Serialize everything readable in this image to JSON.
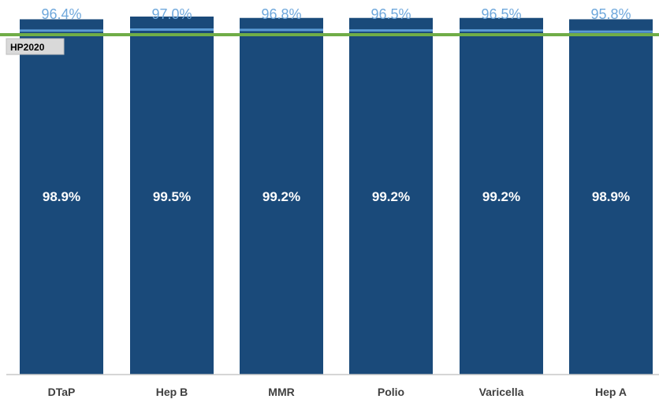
{
  "chart_data": {
    "type": "bar",
    "categories": [
      "DTaP",
      "Hep B",
      "MMR",
      "Polio",
      "Varicella",
      "Hep A"
    ],
    "series": [
      {
        "values": [
          98.9,
          99.5,
          99.2,
          99.2,
          99.2,
          98.9
        ],
        "labels": [
          "98.9%",
          "99.5%",
          "99.2%",
          "99.2%",
          "99.2%",
          "98.9%"
        ],
        "color": "#1a4a7a"
      },
      {
        "values": [
          96.4,
          97.0,
          96.8,
          96.5,
          96.5,
          95.8
        ],
        "labels": [
          "96.4%",
          "97.0%",
          "96.8%",
          "96.5%",
          "96.5%",
          "95.8%"
        ],
        "color": "#5b9bd5"
      }
    ],
    "target": {
      "label": "HP2020",
      "color": "#70ad47"
    },
    "title": "",
    "xlabel": "",
    "ylabel": ""
  }
}
